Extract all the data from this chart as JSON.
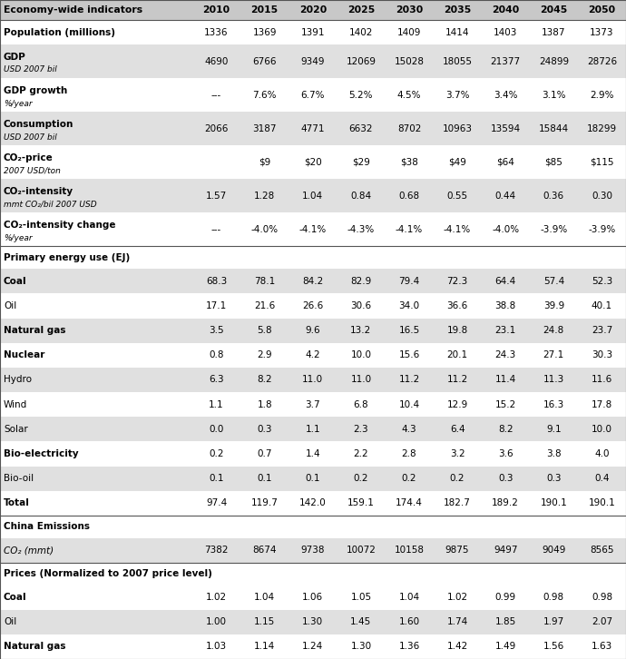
{
  "columns": [
    "Economy-wide indicators",
    "2010",
    "2015",
    "2020",
    "2025",
    "2030",
    "2035",
    "2040",
    "2045",
    "2050"
  ],
  "rows": [
    {
      "label": "Population (millions)",
      "label2": "",
      "values": [
        "1336",
        "1369",
        "1391",
        "1402",
        "1409",
        "1414",
        "1403",
        "1387",
        "1373"
      ],
      "label_bold": true,
      "label2_italic": false,
      "section": false,
      "co2italic": false
    },
    {
      "label": "GDP",
      "label2": "USD 2007 bil",
      "values": [
        "4690",
        "6766",
        "9349",
        "12069",
        "15028",
        "18055",
        "21377",
        "24899",
        "28726"
      ],
      "label_bold": true,
      "label2_italic": true,
      "section": false,
      "co2italic": false
    },
    {
      "label": "GDP growth",
      "label2": "%/year",
      "values": [
        "---",
        "7.6%",
        "6.7%",
        "5.2%",
        "4.5%",
        "3.7%",
        "3.4%",
        "3.1%",
        "2.9%"
      ],
      "label_bold": true,
      "label2_italic": true,
      "section": false,
      "co2italic": false
    },
    {
      "label": "Consumption",
      "label2": "USD 2007 bil",
      "values": [
        "2066",
        "3187",
        "4771",
        "6632",
        "8702",
        "10963",
        "13594",
        "15844",
        "18299"
      ],
      "label_bold": true,
      "label2_italic": true,
      "section": false,
      "co2italic": false
    },
    {
      "label": "CO₂-price",
      "label2": "2007 USD/ton",
      "values": [
        "",
        "$9",
        "$20",
        "$29",
        "$38",
        "$49",
        "$64",
        "$85",
        "$115"
      ],
      "label_bold": true,
      "label2_italic": true,
      "section": false,
      "co2italic": false
    },
    {
      "label": "CO₂-intensity",
      "label2": "mmt CO₂/bil 2007 USD",
      "values": [
        "1.57",
        "1.28",
        "1.04",
        "0.84",
        "0.68",
        "0.55",
        "0.44",
        "0.36",
        "0.30"
      ],
      "label_bold": true,
      "label2_italic": true,
      "section": false,
      "co2italic": false
    },
    {
      "label": "CO₂-intensity change",
      "label2": "%/year",
      "values": [
        "---",
        "-4.0%",
        "-4.1%",
        "-4.3%",
        "-4.1%",
        "-4.1%",
        "-4.0%",
        "-3.9%",
        "-3.9%"
      ],
      "label_bold": true,
      "label2_italic": true,
      "section": false,
      "co2italic": false
    },
    {
      "label": "Primary energy use (EJ)",
      "label2": "",
      "values": [
        "",
        "",
        "",
        "",
        "",
        "",
        "",
        "",
        ""
      ],
      "label_bold": true,
      "label2_italic": false,
      "section": true,
      "co2italic": false
    },
    {
      "label": "Coal",
      "label2": "",
      "values": [
        "68.3",
        "78.1",
        "84.2",
        "82.9",
        "79.4",
        "72.3",
        "64.4",
        "57.4",
        "52.3"
      ],
      "label_bold": true,
      "label2_italic": false,
      "section": false,
      "co2italic": false
    },
    {
      "label": "Oil",
      "label2": "",
      "values": [
        "17.1",
        "21.6",
        "26.6",
        "30.6",
        "34.0",
        "36.6",
        "38.8",
        "39.9",
        "40.1"
      ],
      "label_bold": false,
      "label2_italic": false,
      "section": false,
      "co2italic": false
    },
    {
      "label": "Natural gas",
      "label2": "",
      "values": [
        "3.5",
        "5.8",
        "9.6",
        "13.2",
        "16.5",
        "19.8",
        "23.1",
        "24.8",
        "23.7"
      ],
      "label_bold": true,
      "label2_italic": false,
      "section": false,
      "co2italic": false
    },
    {
      "label": "Nuclear",
      "label2": "",
      "values": [
        "0.8",
        "2.9",
        "4.2",
        "10.0",
        "15.6",
        "20.1",
        "24.3",
        "27.1",
        "30.3"
      ],
      "label_bold": true,
      "label2_italic": false,
      "section": false,
      "co2italic": false
    },
    {
      "label": "Hydro",
      "label2": "",
      "values": [
        "6.3",
        "8.2",
        "11.0",
        "11.0",
        "11.2",
        "11.2",
        "11.4",
        "11.3",
        "11.6"
      ],
      "label_bold": false,
      "label2_italic": false,
      "section": false,
      "co2italic": false
    },
    {
      "label": "Wind",
      "label2": "",
      "values": [
        "1.1",
        "1.8",
        "3.7",
        "6.8",
        "10.4",
        "12.9",
        "15.2",
        "16.3",
        "17.8"
      ],
      "label_bold": false,
      "label2_italic": false,
      "section": false,
      "co2italic": false
    },
    {
      "label": "Solar",
      "label2": "",
      "values": [
        "0.0",
        "0.3",
        "1.1",
        "2.3",
        "4.3",
        "6.4",
        "8.2",
        "9.1",
        "10.0"
      ],
      "label_bold": false,
      "label2_italic": false,
      "section": false,
      "co2italic": false
    },
    {
      "label": "Bio-electricity",
      "label2": "",
      "values": [
        "0.2",
        "0.7",
        "1.4",
        "2.2",
        "2.8",
        "3.2",
        "3.6",
        "3.8",
        "4.0"
      ],
      "label_bold": true,
      "label2_italic": false,
      "section": false,
      "co2italic": false
    },
    {
      "label": "Bio-oil",
      "label2": "",
      "values": [
        "0.1",
        "0.1",
        "0.1",
        "0.2",
        "0.2",
        "0.2",
        "0.3",
        "0.3",
        "0.4"
      ],
      "label_bold": false,
      "label2_italic": false,
      "section": false,
      "co2italic": false
    },
    {
      "label": "Total",
      "label2": "",
      "values": [
        "97.4",
        "119.7",
        "142.0",
        "159.1",
        "174.4",
        "182.7",
        "189.2",
        "190.1",
        "190.1"
      ],
      "label_bold": true,
      "label2_italic": false,
      "section": false,
      "co2italic": false
    },
    {
      "label": "China Emissions",
      "label2": "",
      "values": [
        "",
        "",
        "",
        "",
        "",
        "",
        "",
        "",
        ""
      ],
      "label_bold": true,
      "label2_italic": false,
      "section": true,
      "co2italic": false
    },
    {
      "label": "CO₂ (mmt)",
      "label2": "",
      "values": [
        "7382",
        "8674",
        "9738",
        "10072",
        "10158",
        "9875",
        "9497",
        "9049",
        "8565"
      ],
      "label_bold": false,
      "label2_italic": false,
      "section": false,
      "co2italic": true
    },
    {
      "label": "Prices (Normalized to 2007 price level)",
      "label2": "",
      "values": [
        "",
        "",
        "",
        "",
        "",
        "",
        "",
        "",
        ""
      ],
      "label_bold": true,
      "label2_italic": false,
      "section": true,
      "co2italic": false
    },
    {
      "label": "Coal",
      "label2": "",
      "values": [
        "1.02",
        "1.04",
        "1.06",
        "1.05",
        "1.04",
        "1.02",
        "0.99",
        "0.98",
        "0.98"
      ],
      "label_bold": true,
      "label2_italic": false,
      "section": false,
      "co2italic": false
    },
    {
      "label": "Oil",
      "label2": "",
      "values": [
        "1.00",
        "1.15",
        "1.30",
        "1.45",
        "1.60",
        "1.74",
        "1.85",
        "1.97",
        "2.07"
      ],
      "label_bold": false,
      "label2_italic": false,
      "section": false,
      "co2italic": false
    },
    {
      "label": "Natural gas",
      "label2": "",
      "values": [
        "1.03",
        "1.14",
        "1.24",
        "1.30",
        "1.36",
        "1.42",
        "1.49",
        "1.56",
        "1.63"
      ],
      "label_bold": true,
      "label2_italic": false,
      "section": false,
      "co2italic": false
    }
  ],
  "col_header_bg": "#c8c8c8",
  "row_alt_colors": [
    "#ffffff",
    "#e0e0e0"
  ],
  "section_bg": "#ffffff",
  "border_color": "#555555",
  "text_color": "#000000",
  "fig_w": 6.9,
  "fig_h": 7.26,
  "dpi": 100
}
